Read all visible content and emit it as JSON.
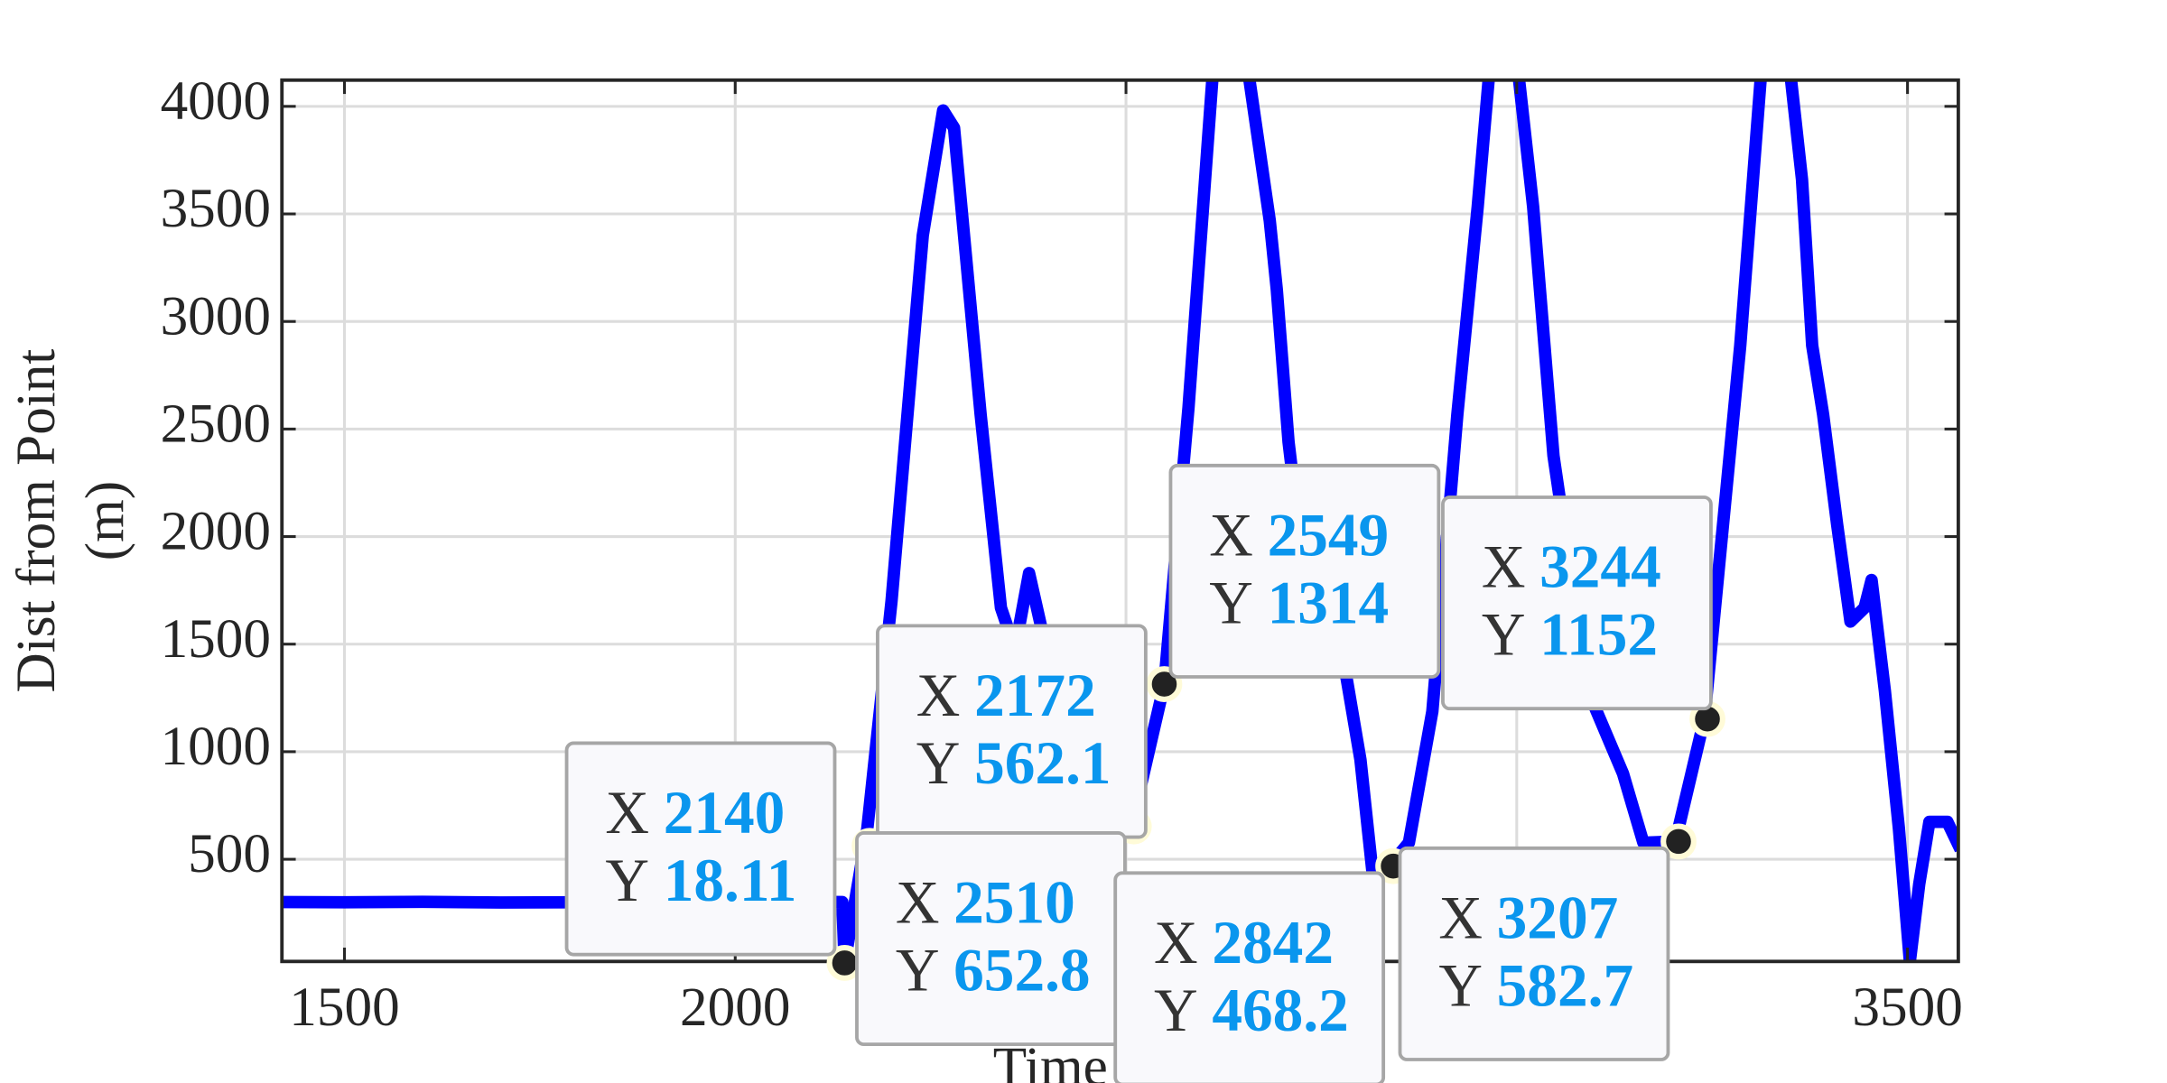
{
  "chart_data": {
    "type": "line",
    "xlabel": "Time",
    "ylabel": [
      "Dist from Point",
      "(m)"
    ],
    "xlim": [
      1420,
      3565
    ],
    "ylim": [
      25,
      4122
    ],
    "xticks": [
      1500,
      2000,
      2500,
      3000,
      3500
    ],
    "yticks": [
      500,
      1000,
      1500,
      2000,
      2500,
      3000,
      3500,
      4000
    ],
    "grid": true,
    "x": [
      1420,
      1500,
      1600,
      1700,
      1800,
      1900,
      2000,
      2100,
      2137,
      2140,
      2169,
      2200,
      2240,
      2266,
      2280,
      2314,
      2340,
      2358,
      2376,
      2394,
      2420,
      2460,
      2507,
      2549,
      2580,
      2614,
      2635,
      2658,
      2684,
      2693,
      2708,
      2729,
      2752,
      2782,
      2800,
      2817,
      2837,
      2862,
      2892,
      2924,
      2950,
      2964,
      2985,
      3003,
      3021,
      3047,
      3091,
      3136,
      3162,
      3203,
      3240,
      3286,
      3312,
      3330,
      3351,
      3365,
      3378,
      3392,
      3410,
      3427,
      3445,
      3454,
      3471,
      3489,
      3503,
      3515,
      3528,
      3551,
      3568
    ],
    "series": [
      {
        "name": "Dist from Point",
        "color": "#0000ff",
        "values": [
          301,
          300,
          302,
          299,
          300,
          301,
          300,
          302,
          301,
          18.11,
          642,
          1700,
          3400,
          3981,
          3900,
          2568,
          1669,
          1477,
          1830,
          1540,
          642,
          500,
          652.8,
          1314,
          2600,
          4300,
          4700,
          4122,
          3468,
          3147,
          2440,
          1798,
          1540,
          1348,
          963,
          385,
          468.2,
          577,
          1187,
          2568,
          3532,
          4122,
          4650,
          4122,
          3532,
          2376,
          1284,
          898,
          577,
          582.7,
          1152,
          2889,
          4122,
          4500,
          4122,
          3660,
          2889,
          2568,
          2055,
          1605,
          1669,
          1798,
          1284,
          642,
          25,
          385,
          674,
          674,
          545
        ]
      }
    ],
    "datatip_labels": {
      "x": "X",
      "y": "Y"
    },
    "datatips": [
      {
        "x": 2140,
        "y": 18.11
      },
      {
        "x": 2172,
        "y": 562.1
      },
      {
        "x": 2510,
        "y": 652.8
      },
      {
        "x": 2549,
        "y": 1314
      },
      {
        "x": 2842,
        "y": 468.2
      },
      {
        "x": 3244,
        "y": 1152
      },
      {
        "x": 3207,
        "y": 582.7
      }
    ]
  }
}
